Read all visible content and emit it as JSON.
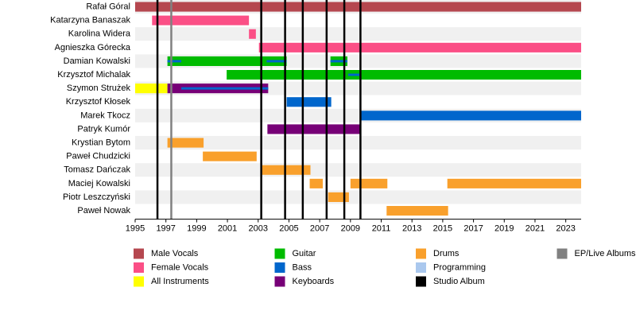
{
  "chart_data": {
    "type": "timeline",
    "categories": [
      "Rafał Góral",
      "Katarzyna Banaszak",
      "Karolina Widera",
      "Agnieszka Górecka",
      "Damian Kowalski",
      "Krzysztof Michalak",
      "Szymon Strużek",
      "Krzysztof Kłosek",
      "Marek Tkocz",
      "Patryk Kumór",
      "Krystian Bytom",
      "Paweł Chudzicki",
      "Tomasz Dańczak",
      "Maciej Kowalski",
      "Piotr Leszczyński",
      "Paweł Nowak"
    ],
    "xlim": [
      1995,
      2024
    ],
    "xticks": [
      1995,
      1997,
      1999,
      2001,
      2003,
      2005,
      2007,
      2009,
      2011,
      2013,
      2015,
      2017,
      2019,
      2021,
      2023
    ],
    "series": [
      {
        "name": "Male Vocals",
        "color": "#b5474f",
        "values": [
          [
            [
              1995,
              2024
            ]
          ],
          [],
          [],
          [],
          [],
          [],
          [],
          [],
          [],
          [],
          [],
          [],
          [],
          [],
          [],
          []
        ]
      },
      {
        "name": "Female Vocals",
        "color": "#fb4f86",
        "values": [
          [],
          [
            [
              1996.1,
              2002.4
            ]
          ],
          [
            [
              2002.4,
              2002.85
            ]
          ],
          [
            [
              2003.05,
              2024
            ]
          ],
          [],
          [],
          [],
          [],
          [],
          [],
          [],
          [],
          [],
          [],
          [],
          []
        ]
      },
      {
        "name": "All Instruments",
        "color": "#ffff00",
        "values": [
          [],
          [],
          [],
          [],
          [],
          [],
          [
            [
              1995,
              1997.1
            ]
          ],
          [],
          [],
          [],
          [],
          [],
          [],
          [],
          [],
          []
        ]
      },
      {
        "name": "Guitar",
        "color": "#00bb00",
        "values": [
          [],
          [],
          [],
          [],
          [
            [
              1997.1,
              2004.85
            ],
            [
              2007.7,
              2008.8
            ]
          ],
          [
            [
              2000.95,
              2024
            ]
          ],
          [],
          [],
          [],
          [],
          [],
          [],
          [],
          [],
          [],
          []
        ]
      },
      {
        "name": "Bass",
        "color": "#0066cc",
        "values": [
          [],
          [],
          [],
          [],
          [],
          [],
          [],
          [
            [
              2004.85,
              2007.75
            ]
          ],
          [
            [
              2009.7,
              2024
            ]
          ],
          [],
          [],
          [],
          [],
          [],
          [],
          []
        ],
        "stripes": [
          [],
          [],
          [],
          [],
          [
            [
              1997.1,
              1998.0
            ],
            [
              2003.55,
              2004.85
            ],
            [
              2007.7,
              2008.8
            ]
          ],
          [
            [
              2008.85,
              2009.7
            ]
          ],
          [
            [
              1998.0,
              2003.65
            ]
          ],
          [],
          [],
          [],
          [],
          [],
          [],
          [],
          [],
          []
        ]
      },
      {
        "name": "Keyboards",
        "color": "#770077",
        "values": [
          [],
          [],
          [],
          [],
          [],
          [],
          [
            [
              1997.1,
              2003.65
            ]
          ],
          [],
          [],
          [
            [
              2003.6,
              2009.7
            ]
          ],
          [],
          [],
          [],
          [],
          [],
          []
        ]
      },
      {
        "name": "Drums",
        "color": "#f9a02c",
        "values": [
          [],
          [],
          [],
          [],
          [],
          [],
          [],
          [],
          [],
          [],
          [
            [
              1997.1,
              1999.45
            ]
          ],
          [
            [
              1999.4,
              2002.9
            ]
          ],
          [
            [
              2003.25,
              2006.4
            ]
          ],
          [
            [
              2006.35,
              2007.2
            ],
            [
              2009.0,
              2011.4
            ],
            [
              2015.3,
              2024
            ]
          ],
          [
            [
              2007.55,
              2008.9
            ]
          ],
          [
            [
              2011.35,
              2015.35
            ]
          ]
        ]
      },
      {
        "name": "Programming",
        "color": "#aac8ee",
        "values": [
          [],
          [],
          [],
          [],
          [],
          [],
          [],
          [],
          [],
          [],
          [],
          [],
          [],
          [],
          [],
          []
        ]
      }
    ],
    "events": [
      {
        "name": "Studio Album",
        "color": "#000000",
        "x": [
          1996.45,
          2003.2,
          2004.75,
          2005.9,
          2007.45,
          2008.6,
          2009.65
        ]
      },
      {
        "name": "EP/Live Albums",
        "color": "#808080",
        "x": [
          1997.35
        ]
      }
    ]
  }
}
